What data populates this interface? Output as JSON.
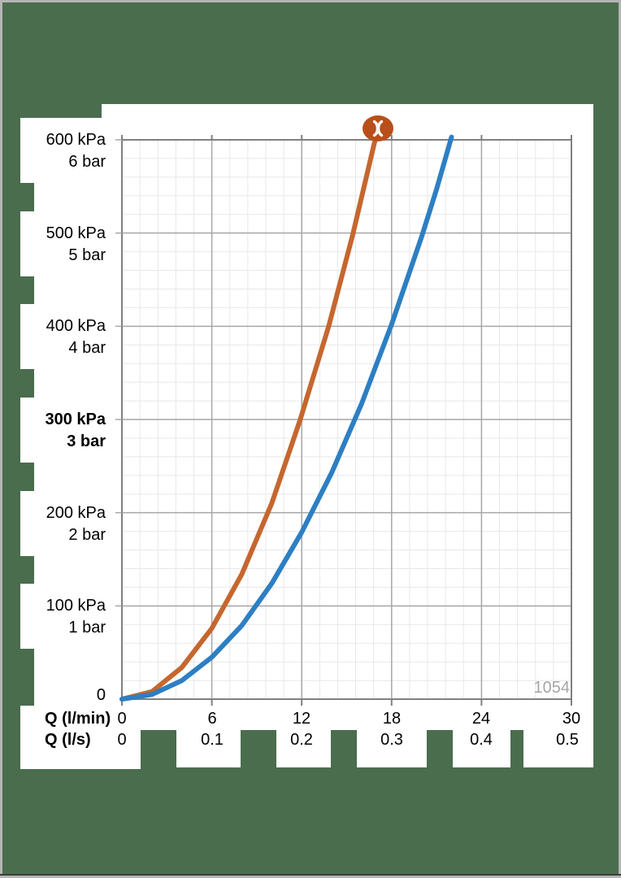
{
  "frame": {
    "background": "#4a6d4e",
    "border": "#b5b5b5"
  },
  "chart_data": {
    "type": "line",
    "title": "",
    "legend": "none",
    "grid": "on",
    "watermark": "1054",
    "logo": {
      "name": "hansa-logo",
      "glyph": ")(",
      "background": "#b94f1a",
      "glyph_color": "#ffffff"
    },
    "x_axis": {
      "row1_label": "Q (l/min)",
      "row2_label": "Q (l/s)",
      "min": 0,
      "max": 30,
      "ticks_lmin": [
        "0",
        "6",
        "12",
        "18",
        "24",
        "30"
      ],
      "ticks_ls": [
        "0",
        "0.1",
        "0.2",
        "0.3",
        "0.4",
        "0.5"
      ],
      "tick_values": [
        0,
        6,
        12,
        18,
        24,
        30
      ],
      "minor_step": 1.2
    },
    "y_axis": {
      "min": 0,
      "max": 600,
      "zero_label": "0",
      "minor_step": 20,
      "major_step": 100,
      "ticks": [
        {
          "value": 600,
          "kpa": "600 kPa",
          "bar": "6 bar",
          "bold": false
        },
        {
          "value": 500,
          "kpa": "500 kPa",
          "bar": "5 bar",
          "bold": false
        },
        {
          "value": 400,
          "kpa": "400 kPa",
          "bar": "4 bar",
          "bold": false
        },
        {
          "value": 300,
          "kpa": "300 kPa",
          "bar": "3 bar",
          "bold": true
        },
        {
          "value": 200,
          "kpa": "200 kPa",
          "bar": "2 bar",
          "bold": false
        },
        {
          "value": 100,
          "kpa": "100 kPa",
          "bar": "1 bar",
          "bold": false
        }
      ]
    },
    "series": [
      {
        "name": "pressure-curve-orange",
        "color": "#c5672f",
        "stroke_width": 6,
        "points": [
          [
            0,
            0
          ],
          [
            2,
            8
          ],
          [
            4,
            34
          ],
          [
            6,
            76
          ],
          [
            8,
            134
          ],
          [
            10,
            210
          ],
          [
            11.9,
            300
          ],
          [
            13.8,
            400
          ],
          [
            15.4,
            498
          ],
          [
            16.9,
            600
          ],
          [
            17.1,
            608
          ]
        ]
      },
      {
        "name": "pressure-curve-blue",
        "color": "#2d7fc3",
        "stroke_width": 6,
        "points": [
          [
            0,
            0
          ],
          [
            2,
            5
          ],
          [
            4,
            20
          ],
          [
            6,
            45
          ],
          [
            8,
            79
          ],
          [
            10,
            124
          ],
          [
            12,
            179
          ],
          [
            14,
            243
          ],
          [
            16,
            317
          ],
          [
            18,
            402
          ],
          [
            20,
            496
          ],
          [
            21,
            547
          ],
          [
            22,
            603
          ]
        ]
      }
    ],
    "grid_colors": {
      "minor": "#e8e8e8",
      "major": "#a6a6a6",
      "border": "#808080"
    }
  }
}
